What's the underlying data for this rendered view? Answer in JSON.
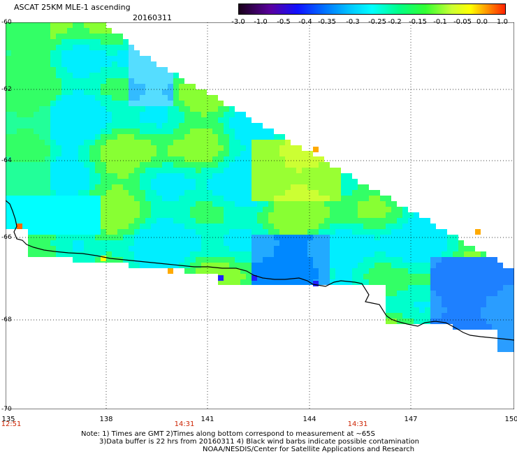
{
  "title": "ASCAT 25KM MLE-1 ascending",
  "date": "20160311",
  "colorbar": {
    "labels": [
      "-3.0",
      "-1.0",
      "-0.5",
      "-0.4",
      "-0.35",
      "-0.3",
      "-0.25",
      "-0.2",
      "-0.15",
      "-0.1",
      "-0.05",
      "0.0",
      "1.0"
    ],
    "colors": [
      "#2a002a",
      "#6a00a8",
      "#1a1aff",
      "#0080ff",
      "#00b0ff",
      "#00ffff",
      "#00ff99",
      "#33ff33",
      "#ccff33",
      "#ffff00",
      "#ffaa00",
      "#ff3300"
    ]
  },
  "map": {
    "lon_labels": [
      "135",
      "138",
      "141",
      "144",
      "147",
      "150"
    ],
    "lat_labels": [
      "-60",
      "-62",
      "-64",
      "-66",
      "-68",
      "-70"
    ],
    "time_labels": [
      "12:51",
      "14:31",
      "14:31"
    ]
  },
  "notes": {
    "line1": "Note: 1) Times are GMT 2)Times along bottom correspond to measurement at ~65S",
    "line2": "3)Data buffer is 22 hrs from 20160311 4) Black wind barbs indicate possible contamination",
    "line3": "NOAA/NESDIS/Center for Satellite Applications and Research"
  }
}
